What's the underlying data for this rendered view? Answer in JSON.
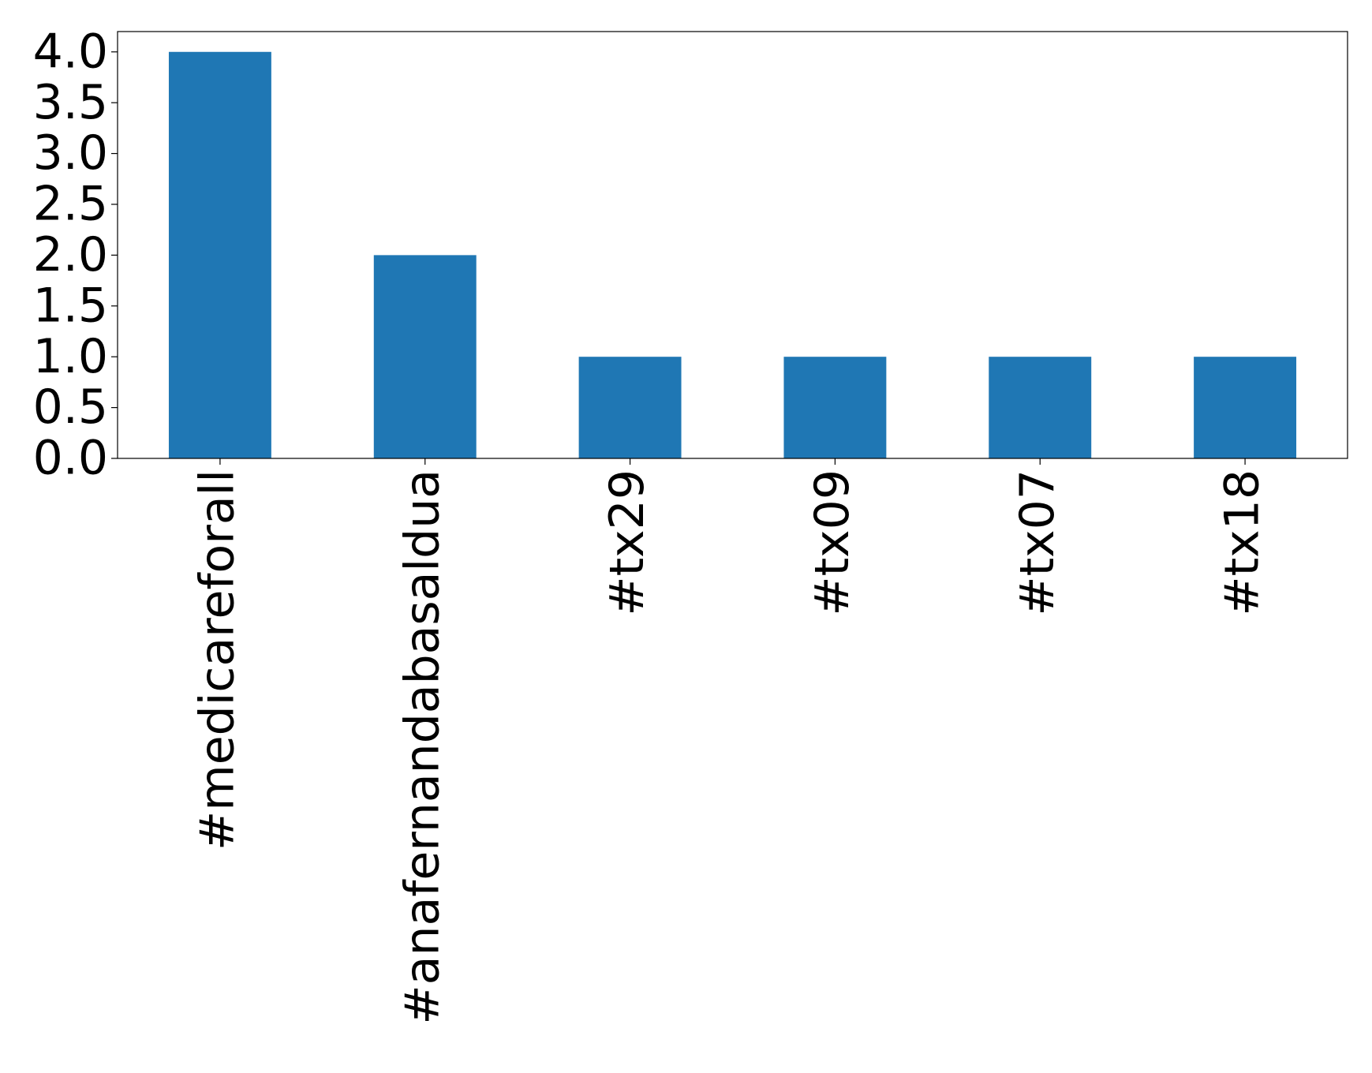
{
  "chart_data": {
    "type": "bar",
    "categories": [
      "#medicareforall",
      "#anafernandabasaldua",
      "#tx29",
      "#tx09",
      "#tx07",
      "#tx18"
    ],
    "values": [
      4,
      2,
      1,
      1,
      1,
      1
    ],
    "color": "#1f77b4",
    "ylim": [
      0,
      4.2
    ],
    "yticks": [
      {
        "value": 0,
        "label": "0.0"
      },
      {
        "value": 0.5,
        "label": "0.5"
      },
      {
        "value": 1,
        "label": "1.0"
      },
      {
        "value": 1.5,
        "label": "1.5"
      },
      {
        "value": 2,
        "label": "2.0"
      },
      {
        "value": 2.5,
        "label": "2.5"
      },
      {
        "value": 3,
        "label": "3.0"
      },
      {
        "value": 3.5,
        "label": "3.5"
      },
      {
        "value": 4,
        "label": "4.0"
      }
    ],
    "grid": false
  }
}
